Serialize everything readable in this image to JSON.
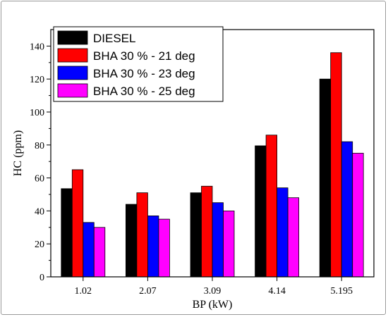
{
  "chart_data": {
    "type": "bar",
    "title": "",
    "xlabel": "BP (kW)",
    "ylabel": "HC (ppm)",
    "categories": [
      "1.02",
      "2.07",
      "3.09",
      "4.14",
      "5.195"
    ],
    "ylim": [
      0,
      150
    ],
    "yticks": [
      0,
      20,
      40,
      60,
      80,
      100,
      120,
      140
    ],
    "grid": false,
    "legend_position": "top-left",
    "series": [
      {
        "name": "DIESEL",
        "color": "#000000",
        "values": [
          53.5,
          44,
          51,
          79.5,
          120
        ]
      },
      {
        "name": "BHA 30 % - 21 deg",
        "color": "#ff0000",
        "values": [
          65,
          51,
          55,
          86,
          136
        ]
      },
      {
        "name": "BHA 30 % - 23 deg",
        "color": "#0000ff",
        "values": [
          33,
          37,
          45,
          54,
          82
        ]
      },
      {
        "name": "BHA 30 % - 25 deg",
        "color": "#ff00ff",
        "values": [
          30,
          35,
          40,
          48,
          75
        ]
      }
    ]
  }
}
